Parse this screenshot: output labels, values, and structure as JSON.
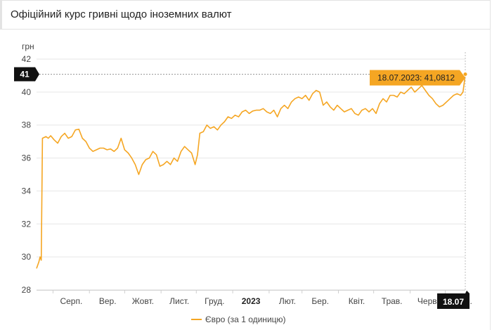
{
  "header": {
    "title": "Офіційний курс гривні щодо іноземних валют"
  },
  "chart_data": {
    "type": "line",
    "title": "",
    "ylabel": "грн",
    "xlabel": "",
    "ylim": [
      28,
      42
    ],
    "yticks": [
      28,
      30,
      32,
      34,
      36,
      38,
      40,
      42
    ],
    "x_range": [
      "2022-07-18",
      "2023-07-18"
    ],
    "xticks": [
      {
        "date": "2022-08-01",
        "label": "Серп.",
        "bold": false
      },
      {
        "date": "2022-09-01",
        "label": "Вер.",
        "bold": false
      },
      {
        "date": "2022-10-01",
        "label": "Жовт.",
        "bold": false
      },
      {
        "date": "2022-11-01",
        "label": "Лист.",
        "bold": false
      },
      {
        "date": "2022-12-01",
        "label": "Груд.",
        "bold": false
      },
      {
        "date": "2023-01-01",
        "label": "2023",
        "bold": true
      },
      {
        "date": "2023-02-01",
        "label": "Лют.",
        "bold": false
      },
      {
        "date": "2023-03-01",
        "label": "Бер.",
        "bold": false
      },
      {
        "date": "2023-04-01",
        "label": "Квіт.",
        "bold": false
      },
      {
        "date": "2023-05-01",
        "label": "Трав.",
        "bold": false
      },
      {
        "date": "2023-06-01",
        "label": "Черв.",
        "bold": false
      },
      {
        "date": "2023-07-01",
        "label": "Лип.",
        "bold": false
      }
    ],
    "grid": "horizontal",
    "legend_position": "bottom-center",
    "series": [
      {
        "name": "Євро (за 1 одиницю)",
        "color": "#f5a623",
        "points": [
          [
            "2022-07-18",
            29.3
          ],
          [
            "2022-07-20",
            29.7
          ],
          [
            "2022-07-21",
            30.0
          ],
          [
            "2022-07-22",
            29.8
          ],
          [
            "2022-07-23",
            37.2
          ],
          [
            "2022-07-26",
            37.3
          ],
          [
            "2022-07-28",
            37.2
          ],
          [
            "2022-07-30",
            37.35
          ],
          [
            "2022-08-02",
            37.1
          ],
          [
            "2022-08-05",
            36.9
          ],
          [
            "2022-08-08",
            37.3
          ],
          [
            "2022-08-11",
            37.5
          ],
          [
            "2022-08-14",
            37.2
          ],
          [
            "2022-08-17",
            37.3
          ],
          [
            "2022-08-20",
            37.7
          ],
          [
            "2022-08-23",
            37.75
          ],
          [
            "2022-08-26",
            37.2
          ],
          [
            "2022-08-29",
            37.0
          ],
          [
            "2022-09-01",
            36.6
          ],
          [
            "2022-09-04",
            36.4
          ],
          [
            "2022-09-07",
            36.5
          ],
          [
            "2022-09-10",
            36.6
          ],
          [
            "2022-09-13",
            36.6
          ],
          [
            "2022-09-16",
            36.5
          ],
          [
            "2022-09-19",
            36.55
          ],
          [
            "2022-09-22",
            36.4
          ],
          [
            "2022-09-25",
            36.6
          ],
          [
            "2022-09-28",
            37.2
          ],
          [
            "2022-10-01",
            36.5
          ],
          [
            "2022-10-04",
            36.3
          ],
          [
            "2022-10-07",
            36.0
          ],
          [
            "2022-10-10",
            35.6
          ],
          [
            "2022-10-13",
            35.0
          ],
          [
            "2022-10-16",
            35.6
          ],
          [
            "2022-10-19",
            35.9
          ],
          [
            "2022-10-22",
            36.0
          ],
          [
            "2022-10-25",
            36.4
          ],
          [
            "2022-10-28",
            36.2
          ],
          [
            "2022-10-31",
            35.5
          ],
          [
            "2022-11-03",
            35.6
          ],
          [
            "2022-11-06",
            35.8
          ],
          [
            "2022-11-09",
            35.6
          ],
          [
            "2022-11-12",
            36.0
          ],
          [
            "2022-11-15",
            35.8
          ],
          [
            "2022-11-18",
            36.4
          ],
          [
            "2022-11-21",
            36.7
          ],
          [
            "2022-11-24",
            36.5
          ],
          [
            "2022-11-27",
            36.3
          ],
          [
            "2022-11-30",
            35.6
          ],
          [
            "2022-12-02",
            36.2
          ],
          [
            "2022-12-04",
            37.5
          ],
          [
            "2022-12-07",
            37.6
          ],
          [
            "2022-12-10",
            38.0
          ],
          [
            "2022-12-13",
            37.8
          ],
          [
            "2022-12-16",
            37.9
          ],
          [
            "2022-12-19",
            37.7
          ],
          [
            "2022-12-22",
            38.0
          ],
          [
            "2022-12-25",
            38.2
          ],
          [
            "2022-12-28",
            38.5
          ],
          [
            "2022-12-31",
            38.4
          ],
          [
            "2023-01-03",
            38.6
          ],
          [
            "2023-01-06",
            38.5
          ],
          [
            "2023-01-09",
            38.8
          ],
          [
            "2023-01-12",
            38.9
          ],
          [
            "2023-01-15",
            38.7
          ],
          [
            "2023-01-18",
            38.85
          ],
          [
            "2023-01-21",
            38.9
          ],
          [
            "2023-01-24",
            38.9
          ],
          [
            "2023-01-27",
            39.0
          ],
          [
            "2023-01-30",
            38.8
          ],
          [
            "2023-02-02",
            38.7
          ],
          [
            "2023-02-05",
            38.9
          ],
          [
            "2023-02-08",
            38.5
          ],
          [
            "2023-02-11",
            39.0
          ],
          [
            "2023-02-14",
            39.2
          ],
          [
            "2023-02-17",
            39.0
          ],
          [
            "2023-02-20",
            39.4
          ],
          [
            "2023-02-23",
            39.6
          ],
          [
            "2023-02-26",
            39.7
          ],
          [
            "2023-03-01",
            39.6
          ],
          [
            "2023-03-04",
            39.8
          ],
          [
            "2023-03-07",
            39.5
          ],
          [
            "2023-03-10",
            39.9
          ],
          [
            "2023-03-13",
            40.1
          ],
          [
            "2023-03-16",
            40.0
          ],
          [
            "2023-03-19",
            39.2
          ],
          [
            "2023-03-22",
            39.4
          ],
          [
            "2023-03-25",
            39.1
          ],
          [
            "2023-03-28",
            38.9
          ],
          [
            "2023-03-31",
            39.2
          ],
          [
            "2023-04-03",
            39.0
          ],
          [
            "2023-04-06",
            38.8
          ],
          [
            "2023-04-09",
            38.9
          ],
          [
            "2023-04-12",
            39.0
          ],
          [
            "2023-04-15",
            38.7
          ],
          [
            "2023-04-18",
            38.6
          ],
          [
            "2023-04-21",
            38.9
          ],
          [
            "2023-04-24",
            39.0
          ],
          [
            "2023-04-27",
            38.8
          ],
          [
            "2023-04-30",
            39.0
          ],
          [
            "2023-05-03",
            38.7
          ],
          [
            "2023-05-06",
            39.3
          ],
          [
            "2023-05-09",
            39.6
          ],
          [
            "2023-05-12",
            39.4
          ],
          [
            "2023-05-15",
            39.8
          ],
          [
            "2023-05-18",
            39.8
          ],
          [
            "2023-05-21",
            39.7
          ],
          [
            "2023-05-24",
            40.0
          ],
          [
            "2023-05-27",
            39.9
          ],
          [
            "2023-05-30",
            40.1
          ],
          [
            "2023-06-02",
            40.3
          ],
          [
            "2023-06-05",
            40.0
          ],
          [
            "2023-06-08",
            40.2
          ],
          [
            "2023-06-11",
            40.4
          ],
          [
            "2023-06-14",
            40.1
          ],
          [
            "2023-06-17",
            39.8
          ],
          [
            "2023-06-20",
            39.6
          ],
          [
            "2023-06-23",
            39.3
          ],
          [
            "2023-06-26",
            39.1
          ],
          [
            "2023-06-29",
            39.2
          ],
          [
            "2023-07-02",
            39.4
          ],
          [
            "2023-07-05",
            39.6
          ],
          [
            "2023-07-08",
            39.8
          ],
          [
            "2023-07-11",
            39.9
          ],
          [
            "2023-07-14",
            39.8
          ],
          [
            "2023-07-16",
            40.0
          ],
          [
            "2023-07-17",
            40.5
          ],
          [
            "2023-07-18",
            41.0812
          ]
        ]
      }
    ],
    "crosshair": {
      "tooltip": "18.07.2023: 41,0812",
      "y_badge": "41",
      "x_badge": "18.07"
    }
  }
}
